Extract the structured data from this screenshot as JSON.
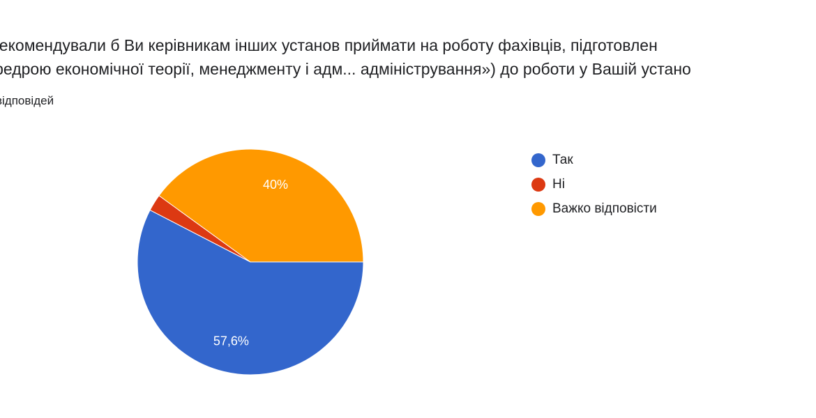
{
  "question": {
    "title_line1": "рекомендували б Ви керівникам інших установ приймати на роботу фахівців, підготовлен",
    "title_line2": "федрою економічної теорії, менеджменту і адм... адміністрування») до роботи у Вашій устано",
    "responses_label": "відповідей"
  },
  "chart_data": {
    "type": "pie",
    "categories": [
      "Так",
      "Ні",
      "Важко відповісти"
    ],
    "values": [
      57.6,
      2.4,
      40.0
    ],
    "data_labels": [
      "57,6%",
      "",
      "40%"
    ],
    "colors": [
      "#3366cc",
      "#dc3912",
      "#ff9900"
    ],
    "start_angle_deg": 90,
    "direction": "clockwise",
    "legend_position": "right"
  }
}
